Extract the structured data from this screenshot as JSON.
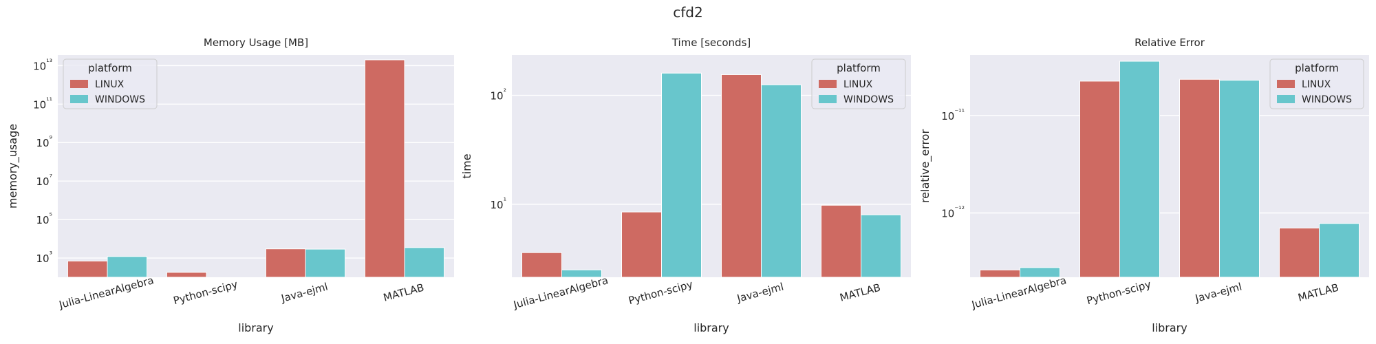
{
  "suptitle": "cfd2",
  "colors": {
    "LINUX": "#ce6a62",
    "WINDOWS": "#68c6cc",
    "axes_bg": "#eaeaf2",
    "grid": "#ffffff",
    "text": "#262626"
  },
  "chart_data": [
    {
      "type": "bar",
      "title": "Memory Usage [MB]",
      "xlabel": "library",
      "ylabel": "memory_usage",
      "yscale": "log",
      "ylim_exp": [
        2.0,
        13.55
      ],
      "ytick_exps": [
        3,
        5,
        7,
        9,
        11,
        13
      ],
      "grid": true,
      "legend_position": "top-left",
      "legend_title": "platform",
      "categories": [
        "Julia-LinearAlgebra",
        "Python-scipy",
        "Java-ejml",
        "MATLAB"
      ],
      "series": [
        {
          "name": "LINUX",
          "values": [
            700,
            180,
            3000,
            20000000000000.0
          ]
        },
        {
          "name": "WINDOWS",
          "values": [
            1200,
            100,
            2900,
            3500
          ]
        }
      ]
    },
    {
      "type": "bar",
      "title": "Time [seconds]",
      "xlabel": "library",
      "ylabel": "time",
      "yscale": "log",
      "ylim_exp": [
        0.33,
        2.37
      ],
      "ytick_exps": [
        1,
        2
      ],
      "grid": true,
      "legend_position": "top-right",
      "legend_title": "platform",
      "categories": [
        "Julia-LinearAlgebra",
        "Python-scipy",
        "Java-ejml",
        "MATLAB"
      ],
      "series": [
        {
          "name": "LINUX",
          "values": [
            3.6,
            8.5,
            155,
            9.8
          ]
        },
        {
          "name": "WINDOWS",
          "values": [
            2.5,
            160,
            125,
            8.0
          ]
        }
      ]
    },
    {
      "type": "bar",
      "title": "Relative Error",
      "xlabel": "library",
      "ylabel": "relative_error",
      "yscale": "log",
      "ylim_exp": [
        -12.66,
        -10.38
      ],
      "ytick_exps": [
        -11,
        -12
      ],
      "grid": true,
      "legend_position": "top-right",
      "legend_title": "platform",
      "categories": [
        "Julia-LinearAlgebra",
        "Python-scipy",
        "Java-ejml",
        "MATLAB"
      ],
      "series": [
        {
          "name": "LINUX",
          "values": [
            2.6e-13,
            2.25e-11,
            2.35e-11,
            7e-13
          ]
        },
        {
          "name": "WINDOWS",
          "values": [
            2.75e-13,
            3.6e-11,
            2.3e-11,
            7.8e-13
          ]
        }
      ]
    }
  ]
}
